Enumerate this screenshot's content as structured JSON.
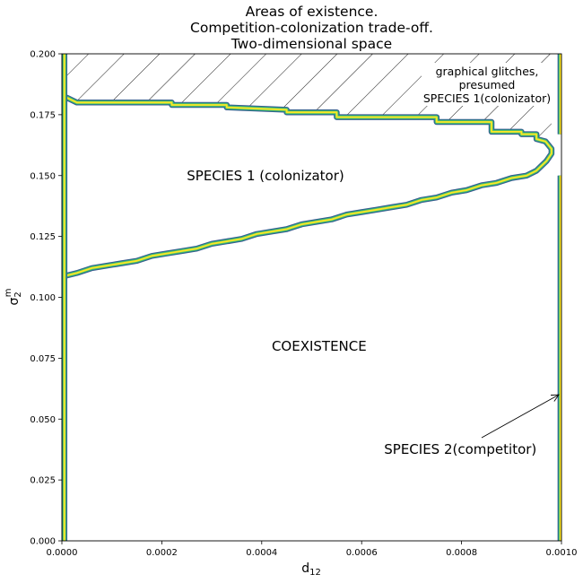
{
  "chart_data": {
    "type": "contour",
    "title": [
      "Areas of existence.",
      "Competition-colonization trade-off.",
      "Two-dimensional space"
    ],
    "xlabel": "d12",
    "ylabel": "σ2m",
    "xlim": [
      0,
      0.001
    ],
    "ylim": [
      0,
      0.2
    ],
    "xticks": [
      0,
      0.0002,
      0.0004,
      0.0006,
      0.0008,
      0.001
    ],
    "xtick_labels": [
      "0.0000",
      "0.0002",
      "0.0004",
      "0.0006",
      "0.0008",
      "0.0010"
    ],
    "yticks": [
      0,
      0.025,
      0.05,
      0.075,
      0.1,
      0.125,
      0.15,
      0.175,
      0.2
    ],
    "ytick_labels": [
      "0.000",
      "0.025",
      "0.050",
      "0.075",
      "0.100",
      "0.125",
      "0.150",
      "0.175",
      "0.200"
    ],
    "grid": false,
    "contour_colors": [
      "#3b528b",
      "#21918c",
      "#5ec962",
      "#fde725"
    ],
    "hatched_region": {
      "note": "graphical glitches, presumed SPECIES 1(colonizator)",
      "upper_boundary_y": 0.2,
      "lower_boundary": {
        "x": [
          0,
          1e-05,
          2e-05,
          3e-05,
          3e-05,
          0.00022,
          0.00022,
          0.00033,
          0.00033,
          0.00045,
          0.00045,
          0.00055,
          0.00055,
          0.00075,
          0.00075,
          0.00086,
          0.00086,
          0.00092,
          0.00092,
          0.00095,
          0.00095,
          0.000968,
          0.00098
        ],
        "y": [
          0.182,
          0.182,
          0.182,
          0.181,
          0.18,
          0.18,
          0.179,
          0.179,
          0.178,
          0.177,
          0.176,
          0.176,
          0.174,
          0.174,
          0.172,
          0.172,
          0.168,
          0.168,
          0.167,
          0.167,
          0.165,
          0.164,
          0.161
        ]
      }
    },
    "regions": [
      {
        "label": "SPECIES 1 (colonizator)",
        "label_pos": [
          0.00025,
          0.15
        ],
        "boundary": {
          "x": [
            5e-06,
            5e-06,
            1e-05,
            3e-05,
            3e-05,
            0.00022,
            0.00022,
            0.00033,
            0.00033,
            0.00045,
            0.00045,
            0.00055,
            0.00055,
            0.00075,
            0.00075,
            0.00086,
            0.00086,
            0.00092,
            0.00092,
            0.00095,
            0.00095,
            0.000968,
            0.00098,
            0.00098,
            0.00097,
            0.00096,
            0.00095,
            0.00093,
            0.0009,
            0.00087,
            0.00084,
            0.00081,
            0.00078,
            0.00075,
            0.00072,
            0.00069,
            0.00066,
            0.00063,
            0.0006,
            0.00057,
            0.00054,
            0.00051,
            0.00048,
            0.00045,
            0.00042,
            0.00039,
            0.00036,
            0.00033,
            0.0003,
            0.00027,
            0.00024,
            0.00021,
            0.00018,
            0.00015,
            0.00012,
            9e-05,
            6e-05,
            3e-05,
            1e-05,
            5e-06
          ],
          "y": [
            0.109,
            0.182,
            0.182,
            0.18,
            0.18,
            0.18,
            0.179,
            0.179,
            0.178,
            0.177,
            0.176,
            0.176,
            0.174,
            0.174,
            0.172,
            0.172,
            0.168,
            0.168,
            0.167,
            0.167,
            0.165,
            0.164,
            0.161,
            0.159,
            0.156,
            0.154,
            0.152,
            0.15,
            0.149,
            0.147,
            0.146,
            0.144,
            0.143,
            0.141,
            0.14,
            0.138,
            0.137,
            0.136,
            0.135,
            0.134,
            0.132,
            0.131,
            0.13,
            0.128,
            0.127,
            0.126,
            0.124,
            0.123,
            0.122,
            0.12,
            0.119,
            0.118,
            0.117,
            0.115,
            0.114,
            0.113,
            0.112,
            0.11,
            0.109,
            0.109
          ]
        }
      },
      {
        "label": "COEXISTENCE",
        "label_pos": [
          0.00042,
          0.08
        ]
      },
      {
        "label": "SPECIES 2(competitor)",
        "label_pos": [
          0.000645,
          0.0375
        ],
        "arrow_to": [
          0.001,
          0.06
        ],
        "boundary": {
          "segments": [
            {
              "x": [
                0.000998,
                0.000998
              ],
              "y": [
                0,
                0.15
              ]
            },
            {
              "x": [
                0.000998,
                0.000998
              ],
              "y": [
                0.167,
                0.2
              ]
            }
          ]
        }
      }
    ],
    "left_edge_band": {
      "x": [
        5e-06,
        5e-06
      ],
      "y": [
        0,
        0.2
      ]
    }
  }
}
